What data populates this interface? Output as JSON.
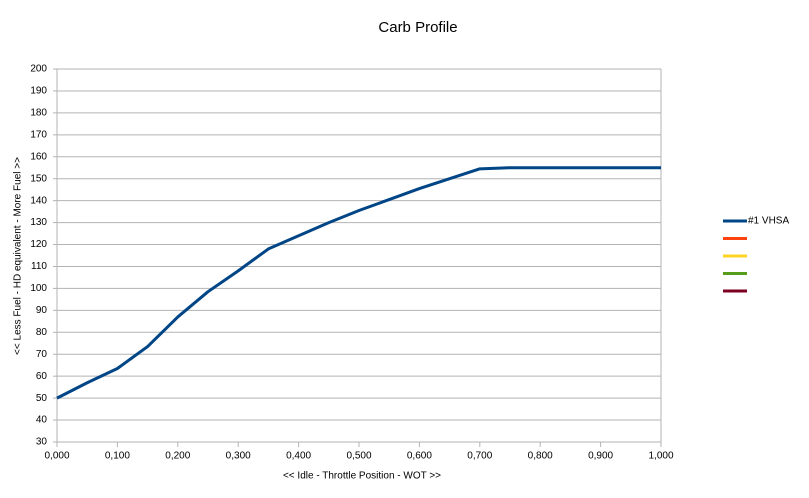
{
  "chart_data": {
    "type": "line",
    "title": "Carb Profile",
    "x_label": "<< Idle - Throttle Position - WOT >>",
    "y_label": "<< Less Fuel - HD equivalent - More Fuel >>",
    "x": [
      0,
      0.05,
      0.1,
      0.15,
      0.2,
      0.25,
      0.3,
      0.35,
      0.4,
      0.45,
      0.5,
      0.55,
      0.6,
      0.65,
      0.7,
      0.75,
      0.8,
      0.85,
      0.9,
      0.95,
      1
    ],
    "series": [
      {
        "name": "#1 VHSA",
        "color": "#004586",
        "values": [
          50,
          57,
          63.5,
          73.5,
          87,
          98.5,
          108,
          118,
          124,
          130,
          135.5,
          140.5,
          145.5,
          150,
          154.5,
          155,
          155,
          155,
          155,
          155,
          155
        ]
      },
      {
        "name": null,
        "color": "#ff420e",
        "values": [
          null,
          null,
          null,
          null,
          null,
          null,
          null,
          null,
          null,
          null,
          null,
          null,
          null,
          null,
          null,
          null,
          null,
          null,
          null,
          null,
          null
        ]
      },
      {
        "name": null,
        "color": "#ffd320",
        "values": [
          null,
          null,
          null,
          null,
          null,
          null,
          null,
          null,
          null,
          null,
          null,
          null,
          null,
          null,
          null,
          null,
          null,
          null,
          null,
          null,
          null
        ]
      },
      {
        "name": null,
        "color": "#579d1c",
        "values": [
          null,
          null,
          null,
          null,
          null,
          null,
          null,
          null,
          null,
          null,
          null,
          null,
          null,
          null,
          null,
          null,
          null,
          null,
          null,
          null,
          null
        ]
      },
      {
        "name": null,
        "color": "#7e0021",
        "values": [
          null,
          null,
          null,
          null,
          null,
          null,
          null,
          null,
          null,
          null,
          null,
          null,
          null,
          null,
          null,
          null,
          null,
          null,
          null,
          null,
          null
        ]
      }
    ],
    "xlim": [
      0,
      1
    ],
    "xticks": [
      {
        "value": 0,
        "label": "0,000"
      },
      {
        "value": 0.1,
        "label": "0,100"
      },
      {
        "value": 0.2,
        "label": "0,200"
      },
      {
        "value": 0.3,
        "label": "0,300"
      },
      {
        "value": 0.4,
        "label": "0,400"
      },
      {
        "value": 0.5,
        "label": "0,500"
      },
      {
        "value": 0.6,
        "label": "0,600"
      },
      {
        "value": 0.7,
        "label": "0,700"
      },
      {
        "value": 0.8,
        "label": "0,800"
      },
      {
        "value": 0.9,
        "label": "0,900"
      },
      {
        "value": 1,
        "label": "1,000"
      }
    ],
    "ylim": [
      30,
      200
    ],
    "yticks": [
      30,
      40,
      50,
      60,
      70,
      80,
      90,
      100,
      110,
      120,
      130,
      140,
      150,
      160,
      170,
      180,
      190,
      200
    ],
    "grid": true,
    "legend": "right"
  }
}
